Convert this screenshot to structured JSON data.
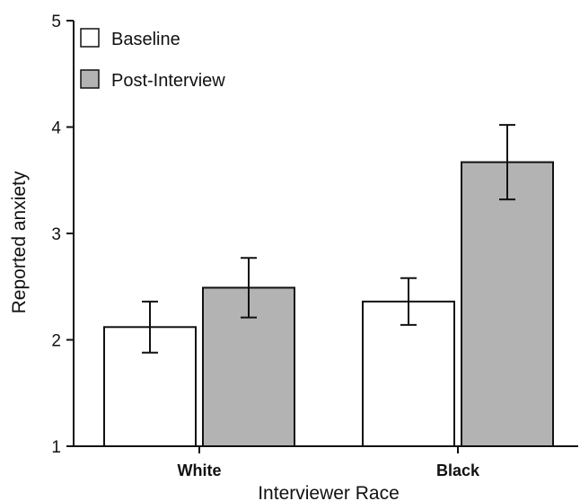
{
  "chart_data": {
    "type": "bar",
    "title": "",
    "xlabel": "Interviewer Race",
    "ylabel": "Reported anxiety",
    "categories": [
      "White",
      "Black"
    ],
    "ylim": [
      1,
      5
    ],
    "yticks": [
      "1",
      "2",
      "3",
      "4",
      "5"
    ],
    "grid": false,
    "legend_position": "top-left",
    "series": [
      {
        "name": "Baseline",
        "color": "#ffffff",
        "values": [
          2.12,
          2.36
        ],
        "error": [
          0.24,
          0.22
        ]
      },
      {
        "name": "Post-Interview",
        "color": "#b3b3b3",
        "values": [
          2.49,
          3.67
        ],
        "error": [
          0.28,
          0.35
        ]
      }
    ]
  }
}
